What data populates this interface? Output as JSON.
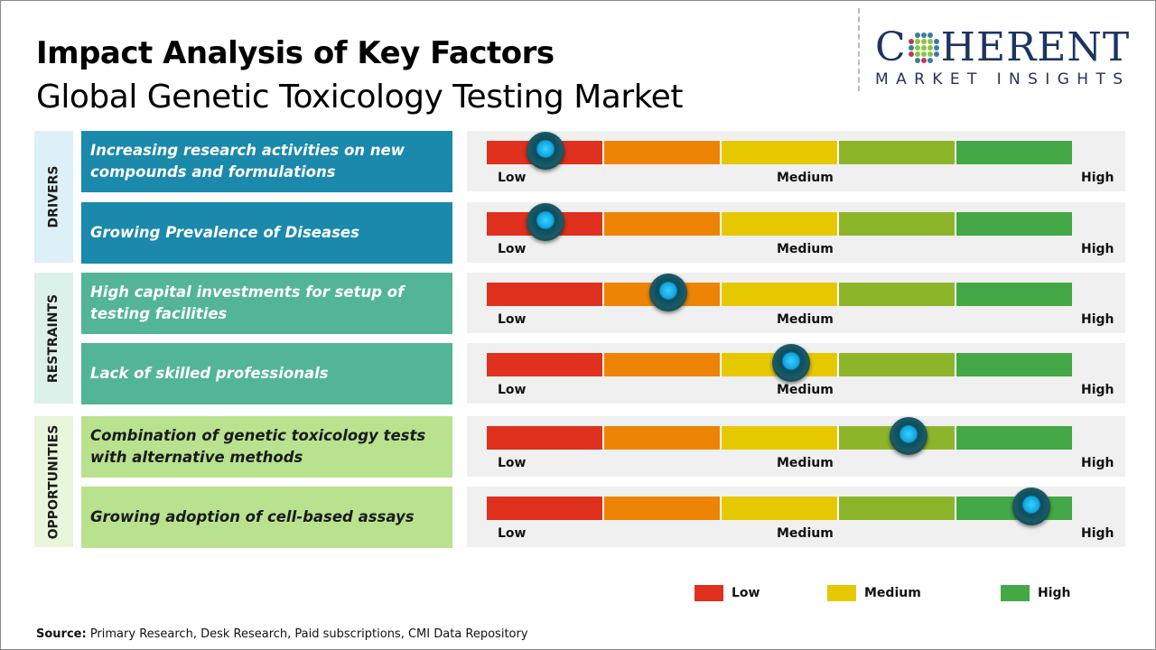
{
  "title": "Impact Analysis of Key Factors",
  "subtitle": "Global Genetic Toxicology Testing Market",
  "logo": {
    "line1_a": "C",
    "line1_b": "HERENT",
    "line2": "MARKET INSIGHTS"
  },
  "colors": {
    "segments": [
      "#e0301e",
      "#ee8405",
      "#e6c800",
      "#8db52a",
      "#43a845"
    ],
    "drivers": "#1a89ab",
    "drivers_bg": "#ddf0f8",
    "restraints": "#52b596",
    "restraints_bg": "#dcf1ea",
    "opportunities": "#b8e28e",
    "opportunities_bg": "#e8f6dc"
  },
  "chart_data": {
    "type": "gauge",
    "scale_labels": [
      "Low",
      "Medium",
      "High"
    ],
    "categories": [
      {
        "name": "DRIVERS",
        "key": "drivers",
        "factors": [
          {
            "label": "Increasing research activities on new compounds and formulations",
            "impact": 0.1
          },
          {
            "label": "Growing Prevalence of Diseases",
            "impact": 0.1
          }
        ]
      },
      {
        "name": "RESTRAINTS",
        "key": "restraints",
        "factors": [
          {
            "label": "High capital investments for setup of testing facilities",
            "impact": 0.31
          },
          {
            "label": "Lack of skilled professionals",
            "impact": 0.52
          }
        ]
      },
      {
        "name": "OPPORTUNITIES",
        "key": "opportunities",
        "factors": [
          {
            "label": "Combination of genetic toxicology tests with alternative methods",
            "impact": 0.72
          },
          {
            "label": "Growing adoption of cell-based assays",
            "impact": 0.93
          }
        ]
      }
    ],
    "legend": [
      {
        "label": "Low",
        "color": "#e0301e"
      },
      {
        "label": "Medium",
        "color": "#e6c800"
      },
      {
        "label": "High",
        "color": "#43a845"
      }
    ]
  },
  "source": {
    "label": "Source:",
    "text": " Primary Research, Desk Research, Paid subscriptions, CMI Data Repository"
  }
}
